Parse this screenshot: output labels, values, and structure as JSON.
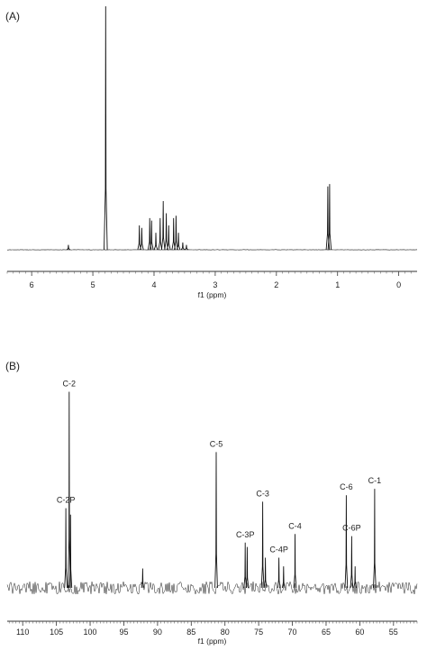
{
  "chart_data": [
    {
      "type": "line",
      "panel_label": "(A)",
      "title": "",
      "xlabel": "f1 (ppm)",
      "ylabel": "",
      "xlim": [
        6.4,
        -0.3
      ],
      "x_reversed": true,
      "ylim": [
        0,
        1
      ],
      "grid": false,
      "x_ticks": [
        6,
        5,
        4,
        3,
        2,
        1,
        0
      ],
      "tick_labels": [
        "6",
        "5",
        "4",
        "3",
        "2",
        "1",
        "0"
      ],
      "peaks": [
        {
          "ppm": 5.4,
          "intensity": 0.02
        },
        {
          "ppm": 4.79,
          "intensity": 1.0
        },
        {
          "ppm": 4.24,
          "intensity": 0.1
        },
        {
          "ppm": 4.2,
          "intensity": 0.09
        },
        {
          "ppm": 4.07,
          "intensity": 0.13
        },
        {
          "ppm": 4.04,
          "intensity": 0.12
        },
        {
          "ppm": 3.97,
          "intensity": 0.07
        },
        {
          "ppm": 3.9,
          "intensity": 0.13
        },
        {
          "ppm": 3.85,
          "intensity": 0.2
        },
        {
          "ppm": 3.8,
          "intensity": 0.15
        },
        {
          "ppm": 3.76,
          "intensity": 0.1
        },
        {
          "ppm": 3.68,
          "intensity": 0.13
        },
        {
          "ppm": 3.64,
          "intensity": 0.14
        },
        {
          "ppm": 3.6,
          "intensity": 0.07
        },
        {
          "ppm": 3.53,
          "intensity": 0.03
        },
        {
          "ppm": 3.47,
          "intensity": 0.02
        },
        {
          "ppm": 1.16,
          "intensity": 0.26
        },
        {
          "ppm": 1.13,
          "intensity": 0.27
        }
      ]
    },
    {
      "type": "line",
      "panel_label": "(B)",
      "title": "",
      "xlabel": "f1 (ppm)",
      "ylabel": "",
      "xlim": [
        112.3,
        51.5
      ],
      "x_reversed": true,
      "ylim": [
        0,
        1
      ],
      "grid": false,
      "x_ticks": [
        110,
        105,
        100,
        95,
        90,
        85,
        80,
        75,
        70,
        65,
        60,
        55
      ],
      "tick_labels": [
        "110",
        "105",
        "100",
        "95",
        "90",
        "85",
        "80",
        "75",
        "70",
        "65",
        "60",
        "55"
      ],
      "peaks": [
        {
          "ppm": 103.6,
          "intensity": 0.37,
          "label": "C-2P"
        },
        {
          "ppm": 103.1,
          "intensity": 0.91,
          "label": "C-2"
        },
        {
          "ppm": 102.9,
          "intensity": 0.34,
          "label": ""
        },
        {
          "ppm": 92.2,
          "intensity": 0.09,
          "label": ""
        },
        {
          "ppm": 81.3,
          "intensity": 0.63,
          "label": "C-5"
        },
        {
          "ppm": 77.0,
          "intensity": 0.21,
          "label": "C-3P"
        },
        {
          "ppm": 76.7,
          "intensity": 0.19,
          "label": ""
        },
        {
          "ppm": 74.4,
          "intensity": 0.4,
          "label": "C-3"
        },
        {
          "ppm": 74.0,
          "intensity": 0.14,
          "label": ""
        },
        {
          "ppm": 72.0,
          "intensity": 0.14,
          "label": "C-4P"
        },
        {
          "ppm": 71.3,
          "intensity": 0.1,
          "label": ""
        },
        {
          "ppm": 69.6,
          "intensity": 0.25,
          "label": "C-4"
        },
        {
          "ppm": 62.0,
          "intensity": 0.43,
          "label": "C-6"
        },
        {
          "ppm": 61.2,
          "intensity": 0.24,
          "label": "C-6P"
        },
        {
          "ppm": 60.7,
          "intensity": 0.1,
          "label": ""
        },
        {
          "ppm": 57.8,
          "intensity": 0.46,
          "label": "C-1"
        }
      ]
    }
  ]
}
